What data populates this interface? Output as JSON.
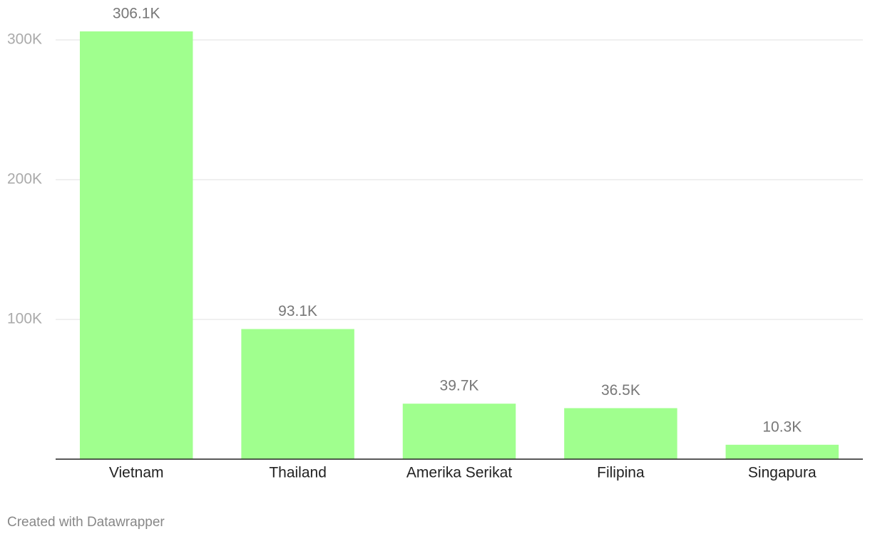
{
  "chart_data": {
    "type": "bar",
    "categories": [
      "Vietnam",
      "Thailand",
      "Amerika Serikat",
      "Filipina",
      "Singapura"
    ],
    "values": [
      306100,
      93100,
      39700,
      36500,
      10300
    ],
    "value_labels": [
      "306.1K",
      "93.1K",
      "39.7K",
      "36.5K",
      "10.3K"
    ],
    "color": "#a0ff8e",
    "ylim": [
      0,
      300000
    ],
    "yticks": [
      {
        "value": 100000,
        "label": "100K"
      },
      {
        "value": 200000,
        "label": "200K"
      },
      {
        "value": 300000,
        "label": "300K"
      }
    ],
    "grid": true,
    "credit": "Created with Datawrapper"
  }
}
